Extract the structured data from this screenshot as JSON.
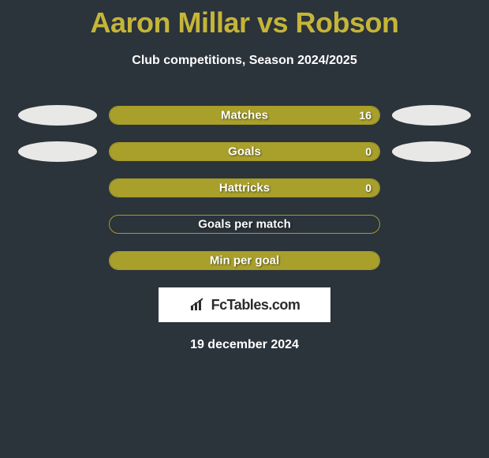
{
  "colors": {
    "background": "#2b333b",
    "title": "#c5b538",
    "text": "#ffffff",
    "bar_fill": "#a9a02c",
    "bar_border": "#a79a25",
    "ellipse": "#e8e8e6",
    "brand_bg": "#ffffff",
    "brand_text": "#2b2b2b"
  },
  "typography": {
    "title_fontsize": 36,
    "subtitle_fontsize": 16,
    "label_fontsize": 15,
    "value_fontsize": 14
  },
  "header": {
    "title": "Aaron Millar vs Robson",
    "subtitle": "Club competitions, Season 2024/2025"
  },
  "stats": {
    "rows": [
      {
        "label": "Matches",
        "value_right": "16",
        "fill_right_pct": 100,
        "left_ellipse": true,
        "right_ellipse": true
      },
      {
        "label": "Goals",
        "value_right": "0",
        "fill_right_pct": 100,
        "left_ellipse": true,
        "right_ellipse": true
      },
      {
        "label": "Hattricks",
        "value_right": "0",
        "fill_right_pct": 100,
        "left_ellipse": false,
        "right_ellipse": false
      },
      {
        "label": "Goals per match",
        "value_right": "",
        "fill_right_pct": 0,
        "left_ellipse": false,
        "right_ellipse": false
      },
      {
        "label": "Min per goal",
        "value_right": "",
        "fill_right_pct": 100,
        "left_ellipse": false,
        "right_ellipse": false
      }
    ]
  },
  "brand": {
    "name": "FcTables.com",
    "icon": "bar-chart-icon"
  },
  "footer": {
    "date": "19 december 2024"
  }
}
